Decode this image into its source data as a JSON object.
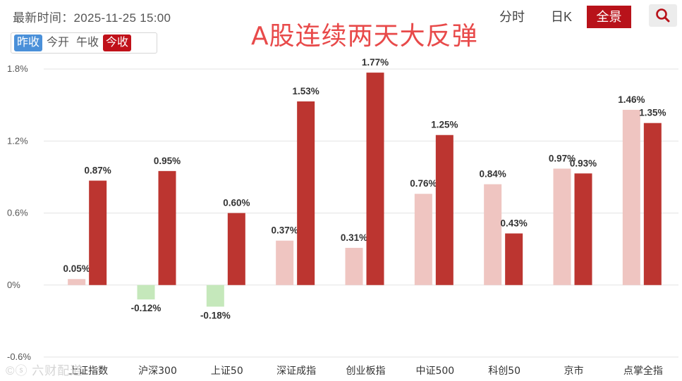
{
  "header": {
    "timestamp": "最新时间：2025-11-25 15:00",
    "headline": "A股连续两天大反弹",
    "toggle_options": [
      "昨收",
      "今开",
      "午收",
      "今收"
    ],
    "nav": {
      "intraday": "分时",
      "daily_k": "日K",
      "overview": "全景"
    },
    "search_icon": "search-icon"
  },
  "watermark": "©ⓢ 六财配道",
  "colors": {
    "prev": "#efc5c1",
    "cur": "#bc3530",
    "neg": "#c5e8bb",
    "accent": "#b8121a",
    "blue": "#4a90d9"
  },
  "chart_data": {
    "type": "bar",
    "title": "",
    "xlabel": "",
    "ylabel": "",
    "ylim": [
      -0.6,
      1.8
    ],
    "yticks": [
      "1.8%",
      "1.2%",
      "0.6%",
      "0%",
      "-0.6%"
    ],
    "grid": true,
    "categories": [
      "上证指数",
      "沪深300",
      "上证50",
      "深证成指",
      "创业板指",
      "中证500",
      "科创50",
      "京市",
      "点掌全指"
    ],
    "series": [
      {
        "values": [
          0.05,
          -0.12,
          -0.18,
          0.37,
          0.31,
          0.76,
          0.84,
          0.97,
          1.46
        ],
        "labels": [
          "0.05%",
          "-0.12%",
          "-0.18%",
          "0.37%",
          "0.31%",
          "0.76%",
          "0.84%",
          "0.97%",
          "1.46%"
        ]
      },
      {
        "values": [
          0.87,
          0.95,
          0.6,
          1.53,
          1.77,
          1.25,
          0.43,
          0.93,
          1.35
        ],
        "labels": [
          "0.87%",
          "0.95%",
          "0.60%",
          "1.53%",
          "1.77%",
          "1.25%",
          "0.43%",
          "0.93%",
          "1.35%"
        ]
      }
    ]
  }
}
